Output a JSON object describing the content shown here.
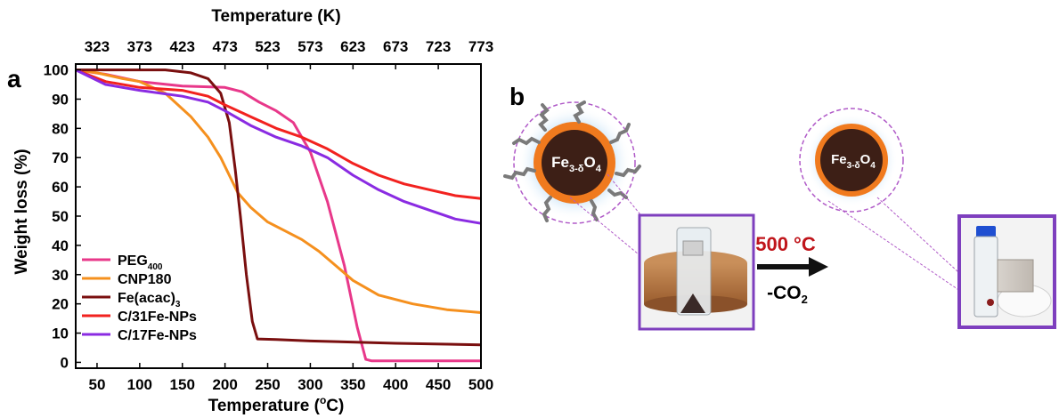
{
  "panel_a_label": "a",
  "panel_b_label": "b",
  "chart_data": {
    "type": "line",
    "title": "",
    "xlabel": "Temperature (°C)",
    "xlabel_parts": {
      "prefix": "Temperature (",
      "superscript": "o",
      "suffix": "C)"
    },
    "ylabel": "Weight loss (%)",
    "x2label": "Temperature (K)",
    "xlim": [
      25,
      500
    ],
    "ylim": [
      -2,
      102
    ],
    "x_ticks": [
      50,
      100,
      150,
      200,
      250,
      300,
      350,
      400,
      450,
      500
    ],
    "y_ticks": [
      0,
      10,
      20,
      30,
      40,
      50,
      60,
      70,
      80,
      90,
      100
    ],
    "x2_ticks": [
      323,
      373,
      423,
      473,
      523,
      573,
      623,
      673,
      723,
      773
    ],
    "legend_position": "bottom-left",
    "series": [
      {
        "name": "PEG400",
        "label_main": "PEG",
        "label_sub": "400",
        "color": "#e8388a",
        "x": [
          25,
          60,
          100,
          150,
          200,
          220,
          240,
          260,
          280,
          300,
          320,
          340,
          355,
          365,
          372,
          380,
          400,
          450,
          500
        ],
        "y": [
          100,
          98.5,
          96,
          94.5,
          94,
          92.5,
          89,
          86,
          82,
          72,
          55,
          33,
          12,
          1,
          0.5,
          0.5,
          0.5,
          0.5,
          0.5
        ]
      },
      {
        "name": "CNP180",
        "label_main": "CNP180",
        "label_sub": "",
        "color": "#f5901e",
        "x": [
          25,
          50,
          80,
          100,
          130,
          160,
          180,
          195,
          205,
          215,
          230,
          250,
          270,
          290,
          310,
          330,
          350,
          380,
          420,
          460,
          500
        ],
        "y": [
          100,
          99,
          97,
          96,
          92,
          84,
          77,
          70,
          64,
          58,
          53,
          48,
          45,
          42,
          38,
          33,
          28,
          23,
          20,
          18,
          17
        ]
      },
      {
        "name": "Fe(acac)3",
        "label_main": "Fe(acac)",
        "label_sub": "3",
        "color": "#7a0f0f",
        "x": [
          25,
          80,
          130,
          160,
          180,
          195,
          205,
          212,
          218,
          225,
          232,
          238,
          260,
          300,
          400,
          500
        ],
        "y": [
          100,
          100,
          100,
          99,
          97,
          92,
          82,
          66,
          50,
          30,
          14,
          8,
          7.8,
          7.3,
          6.5,
          6
        ]
      },
      {
        "name": "C/31Fe-NPs",
        "label_main": "C/31Fe-NPs",
        "label_sub": "",
        "color": "#f2221f",
        "x": [
          25,
          60,
          100,
          150,
          180,
          200,
          230,
          260,
          290,
          320,
          350,
          380,
          410,
          440,
          470,
          500
        ],
        "y": [
          100,
          96,
          94,
          93,
          91,
          88,
          84,
          80,
          77,
          73,
          68,
          64,
          61,
          59,
          57,
          56
        ]
      },
      {
        "name": "C/17Fe-NPs",
        "label_main": "C/17Fe-NPs",
        "label_sub": "",
        "color": "#8a2be2",
        "x": [
          25,
          60,
          100,
          150,
          180,
          200,
          230,
          260,
          290,
          320,
          350,
          380,
          410,
          440,
          470,
          500
        ],
        "y": [
          100,
          95,
          93,
          91,
          89,
          86,
          81,
          77,
          74,
          70,
          64,
          59,
          55,
          52,
          49,
          47.5
        ]
      }
    ]
  },
  "panel_b": {
    "np_label_left": {
      "main": "Fe",
      "sub": "3-δ",
      "o": "O",
      "sub2": "4"
    },
    "np_label_right": {
      "main": "Fe",
      "sub": "3-δ",
      "o": "O",
      "sub2": "4"
    },
    "arrow_temp": "500 °C",
    "arrow_sub": {
      "prefix": "-CO",
      "sub": "2"
    },
    "colors": {
      "core": "#3d1f16",
      "shell": "#f07a1e",
      "halo": "#a9d3f2",
      "dashed": "#b05ac8",
      "frame": "#7e3fbe",
      "temp_text": "#c0151b",
      "arrow": "#111111"
    }
  }
}
